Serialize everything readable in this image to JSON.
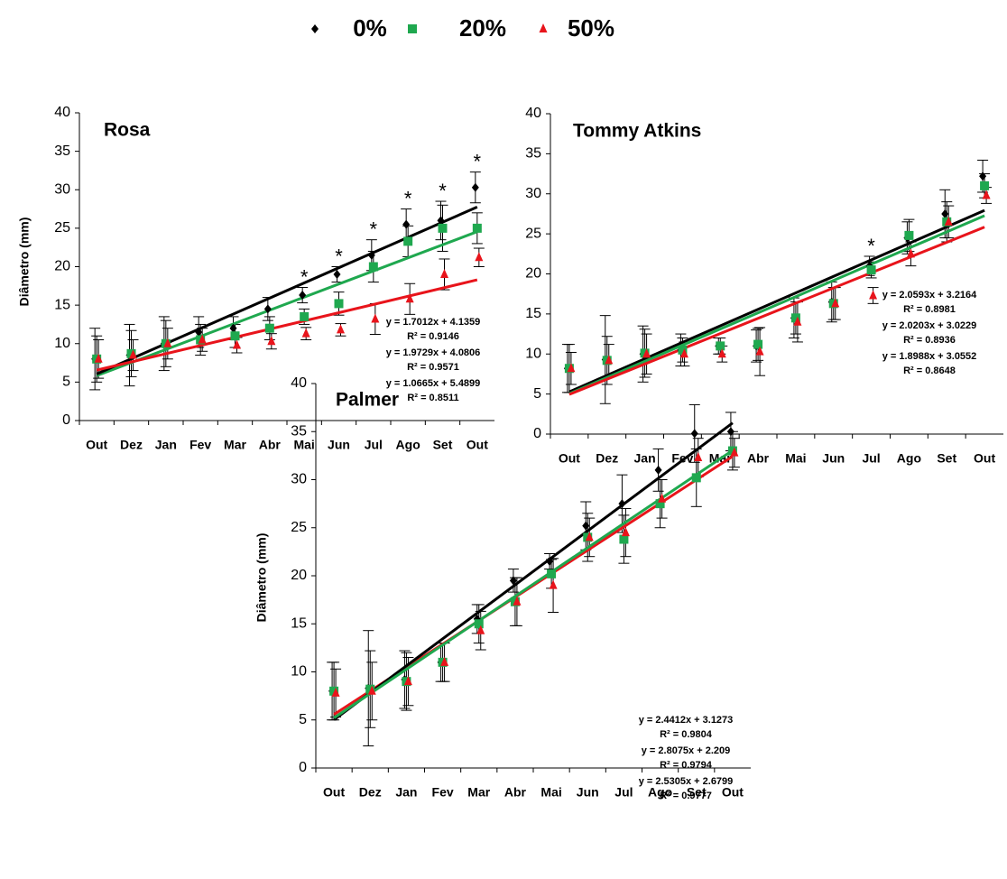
{
  "chart_data": [
    {
      "type": "line",
      "title": "Rosa",
      "y_label": "Diâmetro (mm)",
      "categories": [
        "Out",
        "Dez",
        "Jan",
        "Fev",
        "Mar",
        "Abr",
        "Mai",
        "Jun",
        "Jul",
        "Ago",
        "Set",
        "Out"
      ],
      "ylim": [
        0,
        40
      ],
      "yticks": [
        0,
        5,
        10,
        15,
        20,
        25,
        30,
        35,
        40
      ],
      "series": [
        {
          "name": "0%",
          "color": "#000000",
          "marker": "diamond",
          "values": [
            8,
            8.5,
            10,
            11.5,
            12,
            14.5,
            16.3,
            19,
            21.5,
            25.5,
            26,
            30.3
          ],
          "errors": [
            4,
            4,
            3.5,
            2,
            1.5,
            1.5,
            1,
            1,
            2,
            2,
            2.5,
            2
          ]
        },
        {
          "name": "20%",
          "color": "#1fa84f",
          "marker": "square",
          "values": [
            8,
            8.7,
            10,
            10.5,
            11,
            12,
            13.5,
            15.2,
            20,
            23.3,
            25,
            25
          ],
          "errors": [
            3,
            3,
            3,
            2,
            1.5,
            1.5,
            1,
            1.5,
            2,
            2,
            3,
            2
          ]
        },
        {
          "name": "50%",
          "color": "#e8141b",
          "marker": "triangle",
          "values": [
            8,
            8.5,
            10,
            10.5,
            9.8,
            10.3,
            11.3,
            11.8,
            13.2,
            15.8,
            19,
            21.2
          ],
          "errors": [
            2.5,
            2,
            2,
            1.5,
            1,
            1,
            0.8,
            0.8,
            2,
            2,
            2,
            1.2
          ]
        }
      ],
      "annotations": [
        null,
        null,
        null,
        null,
        null,
        null,
        "*",
        "*",
        "*",
        "*",
        "*",
        "*"
      ],
      "trendlines": [
        {
          "equation": "y = 1.7012x + 4.1359",
          "r2": "R² = 0.9146",
          "slope": 1.7012,
          "intercept": 4.1359,
          "color": "#1fa84f"
        },
        {
          "equation": "y = 1.9729x + 4.0806",
          "r2": "R² = 0.9571",
          "slope": 1.9729,
          "intercept": 4.0806,
          "color": "#000000"
        },
        {
          "equation": "y = 1.0665x + 5.4899",
          "r2": "R² = 0.8511",
          "slope": 1.0665,
          "intercept": 5.4899,
          "color": "#e8141b"
        }
      ]
    },
    {
      "type": "line",
      "title": "Tommy Atkins",
      "categories": [
        "Out",
        "Dez",
        "Jan",
        "Fev",
        "Mar",
        "Abr",
        "Mai",
        "Jun",
        "Jul",
        "Ago",
        "Set",
        "Out"
      ],
      "ylim": [
        0,
        40
      ],
      "yticks": [
        0,
        5,
        10,
        15,
        20,
        25,
        30,
        35,
        40
      ],
      "series": [
        {
          "name": "0%",
          "color": "#000000",
          "marker": "diamond",
          "values": [
            8.2,
            9.3,
            10,
            10.5,
            11,
            11,
            14.5,
            16.5,
            21,
            24.5,
            27.5,
            32.2
          ],
          "errors": [
            3,
            5.5,
            3.5,
            2,
            1,
            2,
            2.5,
            2.5,
            1.2,
            2,
            3,
            2
          ]
        },
        {
          "name": "20%",
          "color": "#1fa84f",
          "marker": "square",
          "values": [
            8.2,
            9.2,
            10.1,
            10.5,
            11,
            11.2,
            14.5,
            16.3,
            20.5,
            24.8,
            26.5,
            31
          ],
          "errors": [
            3,
            3,
            3,
            1.5,
            1,
            2,
            2,
            2,
            1,
            2,
            2.5,
            1.5
          ]
        },
        {
          "name": "50%",
          "color": "#e8141b",
          "marker": "triangle",
          "values": [
            8.2,
            9.2,
            10,
            10,
            10,
            10.3,
            14,
            16.3,
            17.3,
            22.5,
            26.5,
            29.8
          ],
          "errors": [
            2,
            2,
            2.5,
            1.5,
            1,
            3,
            2.5,
            2,
            1,
            1.5,
            2,
            1
          ]
        }
      ],
      "annotations": [
        null,
        null,
        null,
        null,
        null,
        null,
        null,
        null,
        "*",
        null,
        null,
        null
      ],
      "trendlines": [
        {
          "equation": "y = 2.0593x + 3.2164",
          "r2": "R² = 0.8981",
          "slope": 2.0593,
          "intercept": 3.2164,
          "color": "#000000"
        },
        {
          "equation": "y = 2.0203x + 3.0229",
          "r2": "R² = 0.8936",
          "slope": 2.0203,
          "intercept": 3.0229,
          "color": "#1fa84f"
        },
        {
          "equation": "y = 1.8988x + 3.0552",
          "r2": "R² = 0.8648",
          "slope": 1.8988,
          "intercept": 3.0552,
          "color": "#e8141b"
        }
      ]
    },
    {
      "type": "line",
      "title": "Palmer",
      "y_label": "Diâmetro (mm)",
      "categories": [
        "Out",
        "Dez",
        "Jan",
        "Fev",
        "Mar",
        "Abr",
        "Mai",
        "Jun",
        "Jul",
        "Ago",
        "Set",
        "Out"
      ],
      "ylim": [
        0,
        40
      ],
      "yticks": [
        0,
        5,
        10,
        15,
        20,
        25,
        30,
        35,
        40
      ],
      "series": [
        {
          "name": "0%",
          "color": "#000000",
          "marker": "diamond",
          "values": [
            8,
            8.3,
            9.2,
            11,
            15.5,
            19.5,
            21.5,
            25.2,
            27.5,
            31,
            34.8,
            35
          ],
          "errors": [
            3,
            6,
            3,
            2,
            1.5,
            1.2,
            0.8,
            2.5,
            3,
            2.2,
            3,
            2
          ]
        },
        {
          "name": "20%",
          "color": "#1fa84f",
          "marker": "square",
          "values": [
            8,
            8.2,
            9,
            11,
            15,
            17.3,
            20.2,
            24,
            23.8,
            27.5,
            30.2,
            33
          ],
          "errors": [
            3,
            4,
            3,
            2,
            2,
            2.5,
            1.5,
            2.5,
            2.5,
            2.5,
            3,
            2
          ]
        },
        {
          "name": "50%",
          "color": "#e8141b",
          "marker": "triangle",
          "values": [
            7.8,
            8,
            9,
            11,
            14.3,
            17.3,
            19,
            24,
            24.5,
            28,
            32.3,
            32.8
          ],
          "errors": [
            2.5,
            3,
            2.5,
            2,
            2,
            2.5,
            2.8,
            2,
            2.5,
            2,
            2,
            1.5
          ]
        }
      ],
      "annotations": [
        null,
        null,
        null,
        null,
        null,
        null,
        null,
        null,
        null,
        null,
        null,
        null
      ],
      "trendlines": [
        {
          "equation": "y = 2.4412x + 3.1273",
          "r2": "R² = 0.9804",
          "slope": 2.4412,
          "intercept": 3.1273,
          "color": "#e8141b"
        },
        {
          "equation": "y = 2.8075x + 2.209",
          "r2": "R² = 0.9794",
          "slope": 2.8075,
          "intercept": 2.209,
          "color": "#000000"
        },
        {
          "equation": "y = 2.5305x + 2.6799",
          "r2": "R² = 0.9777",
          "slope": 2.5305,
          "intercept": 2.6799,
          "color": "#1fa84f"
        }
      ]
    }
  ]
}
